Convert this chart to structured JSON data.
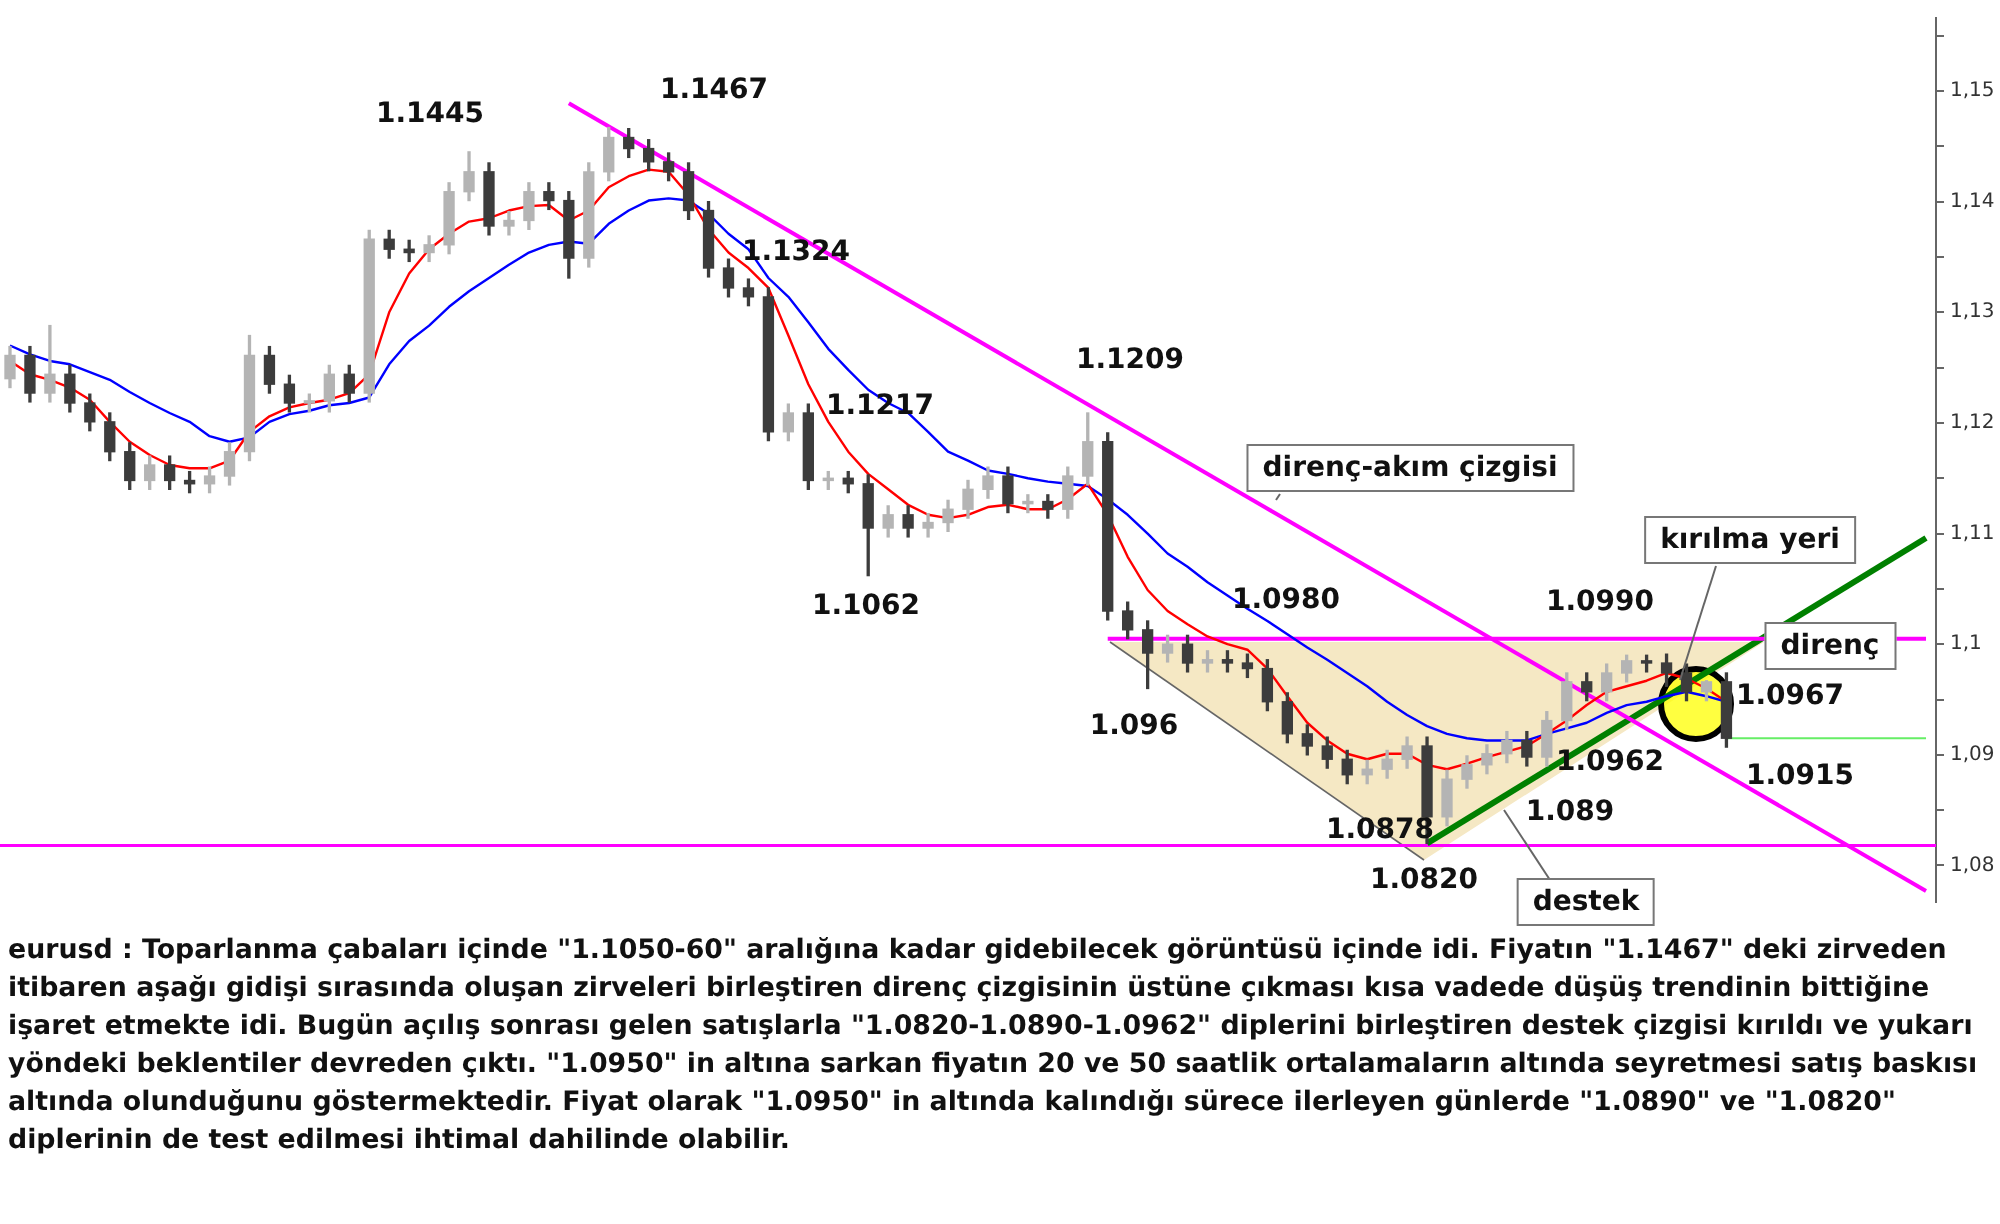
{
  "chart_data": {
    "type": "candlestick",
    "categories": [
      null,
      null,
      null,
      null,
      null,
      null,
      null,
      null,
      null,
      null,
      null,
      null,
      null,
      null,
      null,
      null,
      null,
      null,
      null,
      null,
      null,
      null,
      null,
      null,
      null,
      null,
      null,
      null,
      null,
      null,
      null,
      null,
      null,
      null,
      null,
      null,
      null,
      null,
      null,
      null,
      null,
      null,
      null,
      null,
      null,
      null,
      null,
      null,
      null,
      null,
      null,
      null,
      null,
      null,
      null,
      null,
      null,
      null,
      null,
      null,
      null,
      null,
      null,
      null,
      null,
      null,
      null,
      null,
      null,
      null,
      null,
      null,
      null,
      null,
      null,
      null,
      null,
      null,
      null,
      null,
      null,
      null,
      null,
      null,
      null,
      null,
      null,
      null,
      null,
      null,
      null,
      null,
      null,
      null,
      null,
      null,
      null
    ],
    "ohlc": [
      [
        1.124,
        1.1269,
        1.1232,
        1.1261
      ],
      [
        1.1261,
        1.1269,
        1.1219,
        1.1227
      ],
      [
        1.1227,
        1.1288,
        1.1219,
        1.1244
      ],
      [
        1.1244,
        1.1252,
        1.121,
        1.1218
      ],
      [
        1.1218,
        1.1226,
        1.1193,
        1.1201
      ],
      [
        1.1201,
        1.1209,
        1.1166,
        1.1174
      ],
      [
        1.1174,
        1.1182,
        1.114,
        1.1148
      ],
      [
        1.1148,
        1.117,
        1.114,
        1.1162
      ],
      [
        1.1162,
        1.117,
        1.114,
        1.1148
      ],
      [
        1.1148,
        1.1156,
        1.1137,
        1.1145
      ],
      [
        1.1145,
        1.116,
        1.1137,
        1.1152
      ],
      [
        1.1152,
        1.1182,
        1.1144,
        1.1174
      ],
      [
        1.1174,
        1.1279,
        1.1166,
        1.1261
      ],
      [
        1.1261,
        1.1269,
        1.1227,
        1.1235
      ],
      [
        1.1235,
        1.1243,
        1.121,
        1.1218
      ],
      [
        1.1218,
        1.1226,
        1.121,
        1.122
      ],
      [
        1.122,
        1.1252,
        1.121,
        1.1244
      ],
      [
        1.1244,
        1.1252,
        1.1219,
        1.1227
      ],
      [
        1.1227,
        1.1374,
        1.1219,
        1.1366
      ],
      [
        1.1366,
        1.1374,
        1.1349,
        1.1357
      ],
      [
        1.1357,
        1.1365,
        1.1346,
        1.1354
      ],
      [
        1.1354,
        1.1369,
        1.1346,
        1.1361
      ],
      [
        1.1361,
        1.1417,
        1.1353,
        1.1409
      ],
      [
        1.1409,
        1.1445,
        1.1401,
        1.1427
      ],
      [
        1.1427,
        1.1435,
        1.137,
        1.1378
      ],
      [
        1.1378,
        1.1391,
        1.137,
        1.1383
      ],
      [
        1.1383,
        1.1417,
        1.1375,
        1.1409
      ],
      [
        1.1409,
        1.1417,
        1.1393,
        1.1401
      ],
      [
        1.1401,
        1.1409,
        1.1331,
        1.1349
      ],
      [
        1.1349,
        1.1435,
        1.1341,
        1.1427
      ],
      [
        1.1427,
        1.1467,
        1.1419,
        1.1458
      ],
      [
        1.1458,
        1.1466,
        1.144,
        1.1448
      ],
      [
        1.1448,
        1.1456,
        1.1428,
        1.1436
      ],
      [
        1.1436,
        1.1444,
        1.1419,
        1.1427
      ],
      [
        1.1427,
        1.1435,
        1.1384,
        1.1392
      ],
      [
        1.1392,
        1.14,
        1.1332,
        1.134
      ],
      [
        1.134,
        1.1348,
        1.1314,
        1.1322
      ],
      [
        1.1322,
        1.133,
        1.1306,
        1.1314
      ],
      [
        1.1314,
        1.1322,
        1.1184,
        1.1192
      ],
      [
        1.1192,
        1.1217,
        1.1184,
        1.1209
      ],
      [
        1.1209,
        1.1217,
        1.114,
        1.1148
      ],
      [
        1.1148,
        1.1156,
        1.114,
        1.115
      ],
      [
        1.115,
        1.1156,
        1.1137,
        1.1145
      ],
      [
        1.1145,
        1.1153,
        1.1062,
        1.1105
      ],
      [
        1.1105,
        1.1125,
        1.1097,
        1.1117
      ],
      [
        1.1117,
        1.1125,
        1.1097,
        1.1105
      ],
      [
        1.1105,
        1.1118,
        1.1097,
        1.111
      ],
      [
        1.111,
        1.113,
        1.1102,
        1.1122
      ],
      [
        1.1122,
        1.1148,
        1.1114,
        1.114
      ],
      [
        1.114,
        1.116,
        1.1132,
        1.1152
      ],
      [
        1.1152,
        1.116,
        1.1119,
        1.1127
      ],
      [
        1.1127,
        1.1135,
        1.1119,
        1.1129
      ],
      [
        1.1129,
        1.1135,
        1.1114,
        1.1122
      ],
      [
        1.1122,
        1.116,
        1.1114,
        1.1152
      ],
      [
        1.1152,
        1.1209,
        1.1144,
        1.1183
      ],
      [
        1.1183,
        1.1191,
        1.1022,
        1.103
      ],
      [
        1.103,
        1.1038,
        1.1005,
        1.1013
      ],
      [
        1.1013,
        1.1021,
        1.096,
        1.0992
      ],
      [
        1.0992,
        1.1008,
        1.0984,
        1.1
      ],
      [
        1.1,
        1.1008,
        1.0975,
        1.0983
      ],
      [
        1.0983,
        1.0994,
        1.0975,
        1.0986
      ],
      [
        1.0986,
        1.0994,
        1.0975,
        1.0983
      ],
      [
        1.0983,
        1.0991,
        1.097,
        1.0978
      ],
      [
        1.0978,
        1.0986,
        1.094,
        1.0948
      ],
      [
        1.0948,
        1.0956,
        1.0911,
        1.0919
      ],
      [
        1.0919,
        1.0927,
        1.09,
        1.0908
      ],
      [
        1.0908,
        1.0916,
        1.0888,
        1.0896
      ],
      [
        1.0896,
        1.0904,
        1.0874,
        1.0882
      ],
      [
        1.0882,
        1.0895,
        1.0874,
        1.0887
      ],
      [
        1.0887,
        1.0904,
        1.0879,
        1.0896
      ],
      [
        1.0896,
        1.0916,
        1.0888,
        1.0908
      ],
      [
        1.0908,
        1.0916,
        1.082,
        1.0844
      ],
      [
        1.0844,
        1.0886,
        1.0836,
        1.0878
      ],
      [
        1.0878,
        1.0899,
        1.087,
        1.0891
      ],
      [
        1.0891,
        1.0909,
        1.0883,
        1.0901
      ],
      [
        1.0901,
        1.0921,
        1.0893,
        1.0913
      ],
      [
        1.0913,
        1.0921,
        1.089,
        1.0898
      ],
      [
        1.0898,
        1.0939,
        1.089,
        1.0931
      ],
      [
        1.0931,
        1.0974,
        1.0923,
        1.0966
      ],
      [
        1.0966,
        1.0974,
        1.0949,
        1.0957
      ],
      [
        1.0957,
        1.0982,
        1.0949,
        1.0974
      ],
      [
        1.0974,
        1.099,
        1.0966,
        1.0985
      ],
      [
        1.0985,
        1.099,
        1.0975,
        1.0983
      ],
      [
        1.0983,
        1.0991,
        1.0962,
        1.0974
      ],
      [
        1.0974,
        1.0982,
        1.0949,
        1.0957
      ],
      [
        1.0957,
        1.0967,
        1.0949,
        1.0966
      ],
      [
        1.0966,
        1.0974,
        1.0907,
        1.0915
      ],
      null,
      null,
      null,
      null,
      null,
      null,
      null,
      null,
      null,
      null
    ],
    "colors": [
      "#b4b4b4",
      "#3c3c3c",
      "#b4b4b4",
      "#3c3c3c",
      "#3c3c3c",
      "#3c3c3c",
      "#3c3c3c",
      "#b4b4b4",
      "#3c3c3c",
      "#3c3c3c",
      "#b4b4b4",
      "#b4b4b4",
      "#b4b4b4",
      "#3c3c3c",
      "#3c3c3c",
      "#b4b4b4",
      "#b4b4b4",
      "#3c3c3c",
      "#b4b4b4",
      "#3c3c3c",
      "#3c3c3c",
      "#b4b4b4",
      "#b4b4b4",
      "#b4b4b4",
      "#3c3c3c",
      "#b4b4b4",
      "#b4b4b4",
      "#3c3c3c",
      "#3c3c3c",
      "#b4b4b4",
      "#b4b4b4",
      "#3c3c3c",
      "#3c3c3c",
      "#3c3c3c",
      "#3c3c3c",
      "#3c3c3c",
      "#3c3c3c",
      "#3c3c3c",
      "#3c3c3c",
      "#b4b4b4",
      "#3c3c3c",
      "#b4b4b4",
      "#3c3c3c",
      "#3c3c3c",
      "#b4b4b4",
      "#3c3c3c",
      "#b4b4b4",
      "#b4b4b4",
      "#b4b4b4",
      "#b4b4b4",
      "#3c3c3c",
      "#b4b4b4",
      "#3c3c3c",
      "#b4b4b4",
      "#b4b4b4",
      "#3c3c3c",
      "#3c3c3c",
      "#3c3c3c",
      "#b4b4b4",
      "#3c3c3c",
      "#b4b4b4",
      "#3c3c3c",
      "#3c3c3c",
      "#3c3c3c",
      "#3c3c3c",
      "#3c3c3c",
      "#3c3c3c",
      "#3c3c3c",
      "#b4b4b4",
      "#b4b4b4",
      "#b4b4b4",
      "#3c3c3c",
      "#b4b4b4",
      "#b4b4b4",
      "#b4b4b4",
      "#b4b4b4",
      "#3c3c3c",
      "#b4b4b4",
      "#b4b4b4",
      "#3c3c3c",
      "#b4b4b4",
      "#b4b4b4",
      "#3c3c3c",
      "#3c3c3c",
      "#3c3c3c",
      "#b4b4b4",
      "#3c3c3c",
      null,
      null,
      null,
      null,
      null,
      null,
      null,
      null,
      null,
      null
    ],
    "ylim": [
      1.0767,
      1.1566
    ],
    "yticks": [
      {
        "value": 1.08,
        "label": "1,08"
      },
      {
        "value": 1.085,
        "label": null
      },
      {
        "value": 1.09,
        "label": "1,09"
      },
      {
        "value": 1.095,
        "label": null
      },
      {
        "value": 1.1,
        "label": "1,1"
      },
      {
        "value": 1.105,
        "label": null
      },
      {
        "value": 1.11,
        "label": "1,11"
      },
      {
        "value": 1.115,
        "label": null
      },
      {
        "value": 1.12,
        "label": "1,12"
      },
      {
        "value": 1.125,
        "label": null
      },
      {
        "value": 1.13,
        "label": "1,13"
      },
      {
        "value": 1.135,
        "label": null
      },
      {
        "value": 1.14,
        "label": "1,14"
      },
      {
        "value": 1.145,
        "label": null
      },
      {
        "value": 1.15,
        "label": "1,15"
      },
      {
        "value": 1.155,
        "label": null
      }
    ],
    "tick_labels": "y",
    "series": [
      {
        "type": "line",
        "color": "#ff0000",
        "values": [
          1.1256,
          1.1244,
          1.1239,
          1.1232,
          1.1221,
          1.1201,
          1.1183,
          1.1171,
          1.1162,
          1.1159,
          1.1159,
          1.1166,
          1.1192,
          1.1206,
          1.1214,
          1.1218,
          1.1221,
          1.1227,
          1.1244,
          1.13,
          1.1335,
          1.1357,
          1.1371,
          1.1382,
          1.1385,
          1.1392,
          1.1396,
          1.1397,
          1.1383,
          1.1392,
          1.1413,
          1.1423,
          1.1429,
          1.1427,
          1.1406,
          1.1375,
          1.1354,
          1.134,
          1.1322,
          1.1279,
          1.1235,
          1.1201,
          1.1174,
          1.1154,
          1.114,
          1.1126,
          1.1117,
          1.1114,
          1.1117,
          1.1124,
          1.1126,
          1.1122,
          1.1122,
          1.1131,
          1.1145,
          1.1117,
          1.1079,
          1.1049,
          1.103,
          1.1018,
          1.1007,
          1.1,
          1.0995,
          1.0978,
          1.0953,
          1.0929,
          1.0913,
          1.0901,
          1.0896,
          1.0901,
          1.0901,
          1.0891,
          1.0887,
          1.0892,
          1.0898,
          1.0903,
          1.0908,
          1.0919,
          1.0931,
          1.0945,
          1.0957,
          1.0962,
          1.0967,
          1.0974,
          1.0969,
          1.096,
          1.0948,
          null,
          null,
          null,
          null,
          null,
          null,
          null,
          null,
          null,
          null
        ]
      },
      {
        "type": "line",
        "color": "#0000ff",
        "values": [
          1.127,
          1.1262,
          1.1256,
          1.1253,
          1.1246,
          1.1239,
          1.1228,
          1.1218,
          1.1209,
          1.1201,
          1.1188,
          1.1183,
          1.1187,
          1.1201,
          1.1208,
          1.1211,
          1.1216,
          1.1218,
          1.1223,
          1.1253,
          1.1274,
          1.1288,
          1.1305,
          1.1319,
          1.1331,
          1.1343,
          1.1354,
          1.1361,
          1.1364,
          1.1362,
          1.138,
          1.1392,
          1.1401,
          1.1403,
          1.1401,
          1.1389,
          1.1371,
          1.1357,
          1.1331,
          1.1314,
          1.1291,
          1.1267,
          1.1248,
          1.123,
          1.1218,
          1.1209,
          1.1192,
          1.1174,
          1.1166,
          1.1157,
          1.1154,
          1.115,
          1.1147,
          1.1145,
          1.1143,
          1.1131,
          1.1117,
          1.11,
          1.1082,
          1.107,
          1.1056,
          1.1044,
          1.1032,
          1.1021,
          1.1009,
          1.0997,
          1.0986,
          1.0974,
          1.0962,
          1.0948,
          1.0936,
          1.0926,
          1.0919,
          1.0915,
          1.0913,
          1.0913,
          1.0913,
          1.0919,
          1.0924,
          1.0929,
          1.0938,
          1.0945,
          1.0948,
          1.0953,
          1.0957,
          1.0953,
          1.0948,
          null,
          null,
          null,
          null,
          null,
          null,
          null,
          null,
          null,
          null
        ]
      },
      {
        "type": "line",
        "name": "direnç-akım çizgisi",
        "color": "#ff00ff",
        "values": [
          null,
          null,
          null,
          null,
          null,
          null,
          null,
          null,
          null,
          null,
          null,
          null,
          null,
          null,
          null,
          null,
          null,
          null,
          null,
          null,
          null,
          null,
          null,
          null,
          null,
          null,
          null,
          null,
          1.1489,
          null,
          null,
          null,
          null,
          null,
          null,
          null,
          null,
          null,
          null,
          null,
          null,
          null,
          null,
          null,
          null,
          null,
          null,
          null,
          null,
          null,
          null,
          null,
          null,
          null,
          null,
          null,
          null,
          null,
          null,
          null,
          null,
          null,
          null,
          null,
          null,
          null,
          null,
          null,
          null,
          null,
          null,
          null,
          null,
          null,
          null,
          null,
          null,
          null,
          null,
          null,
          null,
          null,
          null,
          null,
          null,
          null,
          null,
          null,
          null,
          null,
          null,
          null,
          null,
          null,
          null,
          null,
          1.0777
        ]
      },
      {
        "type": "line",
        "name": "direnç",
        "color": "#ff00ff",
        "values": [
          null,
          null,
          null,
          null,
          null,
          null,
          null,
          null,
          null,
          null,
          null,
          null,
          null,
          null,
          null,
          null,
          null,
          null,
          null,
          null,
          null,
          null,
          null,
          null,
          null,
          null,
          null,
          null,
          null,
          null,
          null,
          null,
          null,
          null,
          null,
          null,
          null,
          null,
          null,
          null,
          null,
          null,
          null,
          null,
          null,
          null,
          null,
          null,
          null,
          null,
          null,
          null,
          null,
          null,
          null,
          1.1005,
          null,
          null,
          null,
          null,
          null,
          null,
          null,
          null,
          null,
          null,
          null,
          null,
          null,
          null,
          null,
          null,
          null,
          null,
          null,
          null,
          null,
          null,
          null,
          null,
          null,
          null,
          null,
          null,
          null,
          null,
          null,
          null,
          null,
          null,
          null,
          null,
          null,
          null,
          null,
          null,
          1.1005
        ]
      },
      {
        "type": "line",
        "name": "destek",
        "color": "#008000",
        "values": [
          null,
          null,
          null,
          null,
          null,
          null,
          null,
          null,
          null,
          null,
          null,
          null,
          null,
          null,
          null,
          null,
          null,
          null,
          null,
          null,
          null,
          null,
          null,
          null,
          null,
          null,
          null,
          null,
          null,
          null,
          null,
          null,
          null,
          null,
          null,
          null,
          null,
          null,
          null,
          null,
          null,
          null,
          null,
          null,
          null,
          null,
          null,
          null,
          null,
          null,
          null,
          null,
          null,
          null,
          null,
          null,
          null,
          null,
          null,
          null,
          null,
          null,
          null,
          null,
          null,
          null,
          null,
          null,
          null,
          null,
          null,
          1.082,
          null,
          null,
          null,
          null,
          null,
          null,
          null,
          null,
          null,
          null,
          null,
          null,
          null,
          null,
          null,
          null,
          null,
          null,
          null,
          null,
          null,
          null,
          null,
          null,
          1.1096
        ]
      },
      {
        "type": "line",
        "color": "#66ee66",
        "values": [
          null,
          null,
          null,
          null,
          null,
          null,
          null,
          null,
          null,
          null,
          null,
          null,
          null,
          null,
          null,
          null,
          null,
          null,
          null,
          null,
          null,
          null,
          null,
          null,
          null,
          null,
          null,
          null,
          null,
          null,
          null,
          null,
          null,
          null,
          null,
          null,
          null,
          null,
          null,
          null,
          null,
          null,
          null,
          null,
          null,
          null,
          null,
          null,
          null,
          null,
          null,
          null,
          null,
          null,
          null,
          null,
          null,
          null,
          null,
          null,
          null,
          null,
          null,
          null,
          null,
          null,
          null,
          null,
          null,
          null,
          null,
          null,
          null,
          null,
          null,
          null,
          null,
          null,
          null,
          null,
          null,
          null,
          null,
          null,
          null,
          null,
          1.0915,
          null,
          null,
          null,
          null,
          null,
          null,
          null,
          null,
          null,
          1.0915
        ]
      }
    ],
    "ref_lines": [
      {
        "axis": "y",
        "value": 1.0818,
        "color": "#ff00ff"
      }
    ],
    "annotations": [
      "1.1445",
      "1.1467",
      "1.1324",
      {
        "text": "1.1217",
        "y": 1.1217
      },
      "1.1209",
      {
        "text": "1.1062",
        "y": 1.1062
      },
      "1.0980",
      "1.096",
      {
        "text": "1.0990",
        "y": 1.099
      },
      "1.0967",
      {
        "text": "1.0962",
        "y": 1.0962
      },
      {
        "text": "1.0915",
        "y": 1.0915
      },
      {
        "text": "1.0878",
        "y": 1.0878
      },
      {
        "text": "1.089",
        "y": 1.089
      },
      {
        "text": "1.0820",
        "y": 1.082
      },
      "kırılma yeri",
      "eurusd : Toparlanma çabaları içinde \"1.1050-60\" aralığına kadar gidebilecek görüntüsü içinde idi. Fiyatın \"1.1467\" deki zirveden itibaren aşağı gidişi sırasında oluşan zirveleri birleştiren direnç çizgisinin üstüne çıkması kısa vadede düşüş trendinin bittiğine işaret etmekte idi. Bugün açılış sonrası gelen satışlarla \"1.0820-1.0890-1.0962\" diplerini birleştiren destek çizgisi kırıldı ve yukarı yöndeki beklentiler devreden çıktı. \"1.0950\" in altına sarkan fiyatın 20 ve 50 saatlik ortalamaların altında seyretmesi satış baskısı altında olunduğunu göstermektedir. Fiyat olarak \"1.0950\" in altında kalındığı sürece ilerleyen günlerde \"1.0890\" ve \"1.0820\" diplerinin de test edilmesi ihtimal dahilinde olabilir."
    ]
  }
}
